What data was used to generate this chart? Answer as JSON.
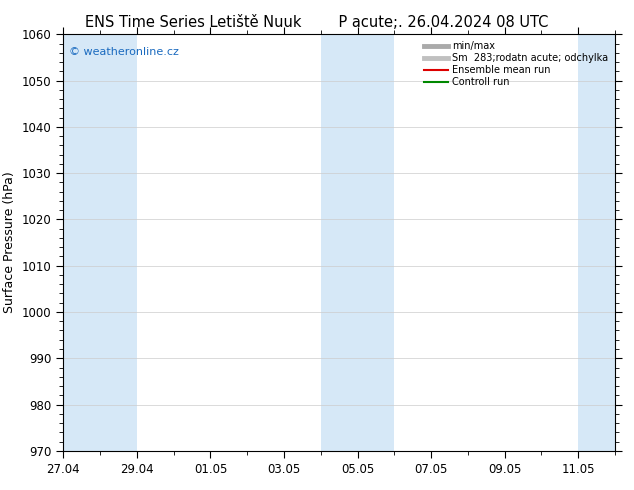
{
  "title_left": "ENS Time Series Letiště Nuuk",
  "title_right": "P acute;. 26.04.2024 08 UTC",
  "ylabel": "Surface Pressure (hPa)",
  "ylim": [
    970,
    1060
  ],
  "yticks": [
    970,
    980,
    990,
    1000,
    1010,
    1020,
    1030,
    1040,
    1050,
    1060
  ],
  "x_start": "2024-04-27",
  "x_end": "2024-05-12",
  "xtick_labels": [
    "27.04",
    "29.04",
    "01.05",
    "03.05",
    "05.05",
    "07.05",
    "09.05",
    "11.05"
  ],
  "xtick_dates": [
    "2024-04-27",
    "2024-04-29",
    "2024-05-01",
    "2024-05-03",
    "2024-05-05",
    "2024-05-07",
    "2024-05-09",
    "2024-05-11"
  ],
  "blue_bands": [
    [
      "2024-04-27",
      "2024-04-29"
    ],
    [
      "2024-05-04",
      "2024-05-06"
    ],
    [
      "2024-05-11",
      "2024-05-12"
    ]
  ],
  "bg_color": "#ffffff",
  "band_color": "#d6e8f7",
  "watermark": "© weatheronline.cz",
  "watermark_color": "#1a6abf",
  "legend_labels": [
    "min/max",
    "Sm  283;rodatn acute; odchylka",
    "Ensemble mean run",
    "Controll run"
  ],
  "legend_colors": [
    "#aaaaaa",
    "#c0c0c0",
    "#dd0000",
    "#008800"
  ],
  "legend_lw": [
    3.5,
    3.5,
    1.5,
    1.5
  ],
  "title_fontsize": 10.5,
  "tick_fontsize": 8.5,
  "ylabel_fontsize": 9
}
